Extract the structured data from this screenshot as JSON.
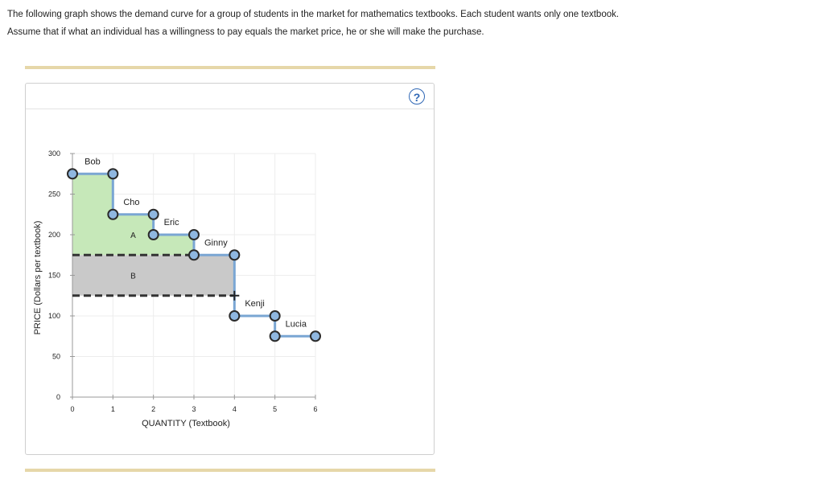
{
  "instructions": {
    "line1": "The following graph shows the demand curve for a group of students in the market for mathematics textbooks. Each student wants only one textbook.",
    "line2": "Assume that if what an individual has a willingness to pay equals the market price, he or she will make the purchase."
  },
  "help_label": "?",
  "colors": {
    "help": "#2f67b5",
    "demand_line": "#7aa6d3",
    "point_fill": "#8fb7e0",
    "point_stroke": "#2b2b2b",
    "area_A": "#c6e8b9",
    "area_B": "#c9c9c9",
    "dashed": "#333333",
    "grid": "#ededed"
  },
  "chart_data": {
    "type": "step-demand",
    "xlabel": "QUANTITY (Textbook)",
    "ylabel": "PRICE (Dollars per textbook)",
    "xlim": [
      0,
      6
    ],
    "ylim": [
      0,
      300
    ],
    "x_ticks": [
      0,
      1,
      2,
      3,
      4,
      5,
      6
    ],
    "y_ticks": [
      0,
      50,
      100,
      150,
      200,
      250,
      300
    ],
    "grid": true,
    "steps": [
      {
        "name": "Bob",
        "x0": 0,
        "x1": 1,
        "price": 275
      },
      {
        "name": "Cho",
        "x0": 1,
        "x1": 2,
        "price": 225
      },
      {
        "name": "Eric",
        "x0": 2,
        "x1": 3,
        "price": 200
      },
      {
        "name": "Ginny",
        "x0": 3,
        "x1": 4,
        "price": 175
      },
      {
        "name": "Kenji",
        "x0": 4,
        "x1": 5,
        "price": 100
      },
      {
        "name": "Lucia",
        "x0": 5,
        "x1": 6,
        "price": 75
      }
    ],
    "price_lines": [
      {
        "price": 175,
        "x_end": 3
      },
      {
        "price": 125,
        "x_end": 4
      }
    ],
    "crosshairs": [
      {
        "x": 3,
        "price": 175
      },
      {
        "x": 4,
        "price": 125
      }
    ],
    "areas": [
      {
        "label": "A",
        "label_x": 1.5,
        "label_price": 200
      },
      {
        "label": "B",
        "label_x": 1.5,
        "label_price": 150
      }
    ]
  }
}
